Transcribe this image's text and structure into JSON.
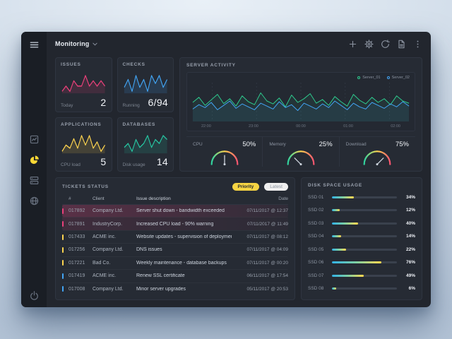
{
  "topbar": {
    "title": "Monitoring",
    "actions": [
      {
        "name": "add"
      },
      {
        "name": "settings"
      },
      {
        "name": "history"
      },
      {
        "name": "report"
      },
      {
        "name": "more"
      }
    ]
  },
  "sidebar": {
    "items": [
      {
        "name": "activity"
      },
      {
        "name": "monitoring",
        "active": true,
        "accent": "#fdd835"
      },
      {
        "name": "servers"
      },
      {
        "name": "network"
      }
    ]
  },
  "cards": [
    {
      "title": "ISSUES",
      "label": "Today",
      "value": "2",
      "color": "#ec407a",
      "spark": [
        2,
        3,
        2,
        4,
        3,
        3,
        5,
        3,
        4,
        3,
        4,
        3
      ]
    },
    {
      "title": "CHECKS",
      "label": "Running",
      "value": "6/94",
      "color": "#42a5f5",
      "spark": [
        4,
        6,
        3,
        7,
        4,
        6,
        3,
        7,
        5,
        7,
        4,
        6
      ]
    },
    {
      "title": "APPLICATIONS",
      "label": "CPU load",
      "value": "5",
      "color": "#ffd54f",
      "spark": [
        2,
        4,
        3,
        6,
        3,
        7,
        4,
        7,
        3,
        5,
        2,
        4
      ]
    },
    {
      "title": "DATABASES",
      "label": "Disk usage",
      "value": "14",
      "color": "#26c6a2",
      "spark": [
        3,
        4,
        2,
        5,
        3,
        4,
        6,
        3,
        5,
        4,
        6,
        5
      ]
    }
  ],
  "server": {
    "title": "SERVER ACTIVITY",
    "legend": [
      {
        "label": "Server_01",
        "color": "#2ecc8f"
      },
      {
        "label": "Server_02",
        "color": "#42a5f5"
      }
    ],
    "x_labels": [
      "22:00",
      "23:00",
      "00:00",
      "01:00",
      "02:00"
    ],
    "series": [
      {
        "name": "Server_01",
        "color": "#2ecc8f",
        "values": [
          48,
          62,
          40,
          55,
          70,
          45,
          58,
          38,
          66,
          50,
          42,
          74,
          52,
          44,
          60,
          36,
          68,
          48,
          58,
          72,
          46,
          56,
          40,
          64,
          50,
          38,
          70,
          54,
          44,
          62,
          48,
          58,
          42,
          66,
          52,
          46
        ]
      },
      {
        "name": "Server_02",
        "color": "#42a5f5",
        "values": [
          30,
          42,
          34,
          48,
          28,
          40,
          52,
          32,
          44,
          36,
          28,
          46,
          38,
          30,
          50,
          34,
          42,
          26,
          46,
          38,
          30,
          44,
          34,
          52,
          40,
          28,
          46,
          36,
          30,
          48,
          40,
          32,
          44,
          36,
          50,
          38
        ]
      }
    ],
    "gauges": [
      {
        "label": "CPU",
        "value": "50%",
        "pct": 50
      },
      {
        "label": "Memory",
        "value": "25%",
        "pct": 25
      },
      {
        "label": "Download",
        "value": "75%",
        "pct": 75
      }
    ]
  },
  "tickets": {
    "title": "TICKETS STATUS",
    "tabs": [
      {
        "label": "Priority",
        "active": true
      },
      {
        "label": "Latest",
        "active": false
      }
    ],
    "columns": {
      "id": "#",
      "client": "Client",
      "desc": "Issue description",
      "date": "Date"
    },
    "rows": [
      {
        "id": "017892",
        "client": "Company Ltd.",
        "desc": "Server shut down - bandwidth exceeded",
        "date": "07/11/2017 @ 12:37",
        "color": "#ec407a",
        "emphasis": 2
      },
      {
        "id": "017891",
        "client": "IndustryCorp.",
        "desc": "Increased CPU load - 90% warning",
        "date": "07/11/2017 @ 11:49",
        "color": "#ec407a",
        "emphasis": 1
      },
      {
        "id": "017433",
        "client": "ACME inc.",
        "desc": "Website updates - supervision of deployment",
        "date": "07/11/2017 @ 08:12",
        "color": "#ffd54f",
        "emphasis": 0
      },
      {
        "id": "017256",
        "client": "Company Ltd.",
        "desc": "DNS issues",
        "date": "07/11/2017 @ 04:09",
        "color": "#ffd54f",
        "emphasis": 0
      },
      {
        "id": "017221",
        "client": "Bad Co.",
        "desc": "Weekly maintenance - database backups",
        "date": "07/11/2017 @ 00:20",
        "color": "#ffd54f",
        "emphasis": 0
      },
      {
        "id": "017419",
        "client": "ACME inc.",
        "desc": "Renew SSL certificate",
        "date": "06/11/2017 @ 17:54",
        "color": "#42a5f5",
        "emphasis": 0
      },
      {
        "id": "017008",
        "client": "Company Ltd.",
        "desc": "Minor server upgrades",
        "date": "05/11/2017 @ 20:53",
        "color": "#42a5f5",
        "emphasis": 0
      }
    ]
  },
  "disk": {
    "title": "DISK SPACE USAGE",
    "items": [
      {
        "label": "SSD 01",
        "value": "34%",
        "pct": 34
      },
      {
        "label": "SSD 02",
        "value": "12%",
        "pct": 12
      },
      {
        "label": "SSD 03",
        "value": "40%",
        "pct": 40
      },
      {
        "label": "SSD 04",
        "value": "14%",
        "pct": 14
      },
      {
        "label": "SSD 05",
        "value": "22%",
        "pct": 22
      },
      {
        "label": "SSD 06",
        "value": "76%",
        "pct": 76
      },
      {
        "label": "SSD 07",
        "value": "49%",
        "pct": 49
      },
      {
        "label": "SSD 08",
        "value": "6%",
        "pct": 6
      }
    ]
  }
}
